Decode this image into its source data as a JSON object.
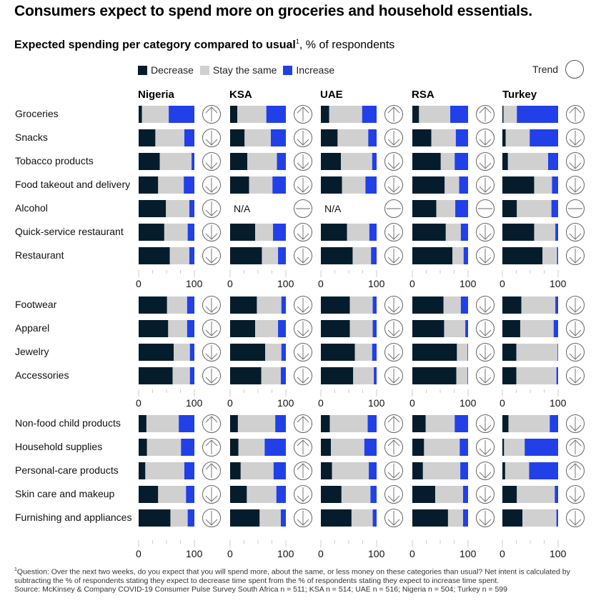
{
  "title": "Consumers expect to spend more on groceries and household essentials.",
  "subtitle_bold": "Expected spending per category compared to usual",
  "subtitle_sup": "1",
  "subtitle_rest": ", % of respondents",
  "legend": {
    "decrease": "Decrease",
    "same": "Stay the same",
    "increase": "Increase",
    "trend": "Trend"
  },
  "colors": {
    "decrease": "#051c2c",
    "same": "#d0d0d0",
    "increase": "#2140e8"
  },
  "na_label": "N/A",
  "footnote": {
    "sup": "1",
    "question": "Question: Over the next two weeks, do you expect that you will spend more, about the same, or less money on these categories than usual? Net intent is calculated by subtracting the % of respondents stating they expect to decrease time spent from the % of respondents stating they expect to increase time spent.",
    "source": "Source: McKinsey & Company COVID-19 Consumer Pulse Survey South Africa n = 511; KSA n = 514; UAE n = 516; Nigeria n = 504; Turkey n = 599"
  },
  "chart_data": {
    "type": "bar",
    "subtype": "stacked-horizontal-small-multiples",
    "title": "Expected spending per category compared to usual, % of respondents",
    "xlim": [
      0,
      100
    ],
    "xticks": [
      "0",
      "100"
    ],
    "series_names": [
      "Decrease",
      "Stay the same",
      "Increase"
    ],
    "countries": [
      "Nigeria",
      "KSA",
      "UAE",
      "RSA",
      "Turkey"
    ],
    "groups": [
      {
        "categories": [
          "Groceries",
          "Snacks",
          "Tobacco products",
          "Food takeout and delivery",
          "Alcohol",
          "Quick-service restaurant",
          "Restaurant"
        ],
        "values": {
          "Nigeria": [
            [
              6,
              48,
              46
            ],
            [
              30,
              52,
              18
            ],
            [
              38,
              57,
              5
            ],
            [
              35,
              46,
              19
            ],
            [
              49,
              42,
              9
            ],
            [
              46,
              42,
              12
            ],
            [
              56,
              35,
              9
            ]
          ],
          "KSA": [
            [
              13,
              52,
              35
            ],
            [
              26,
              47,
              27
            ],
            [
              31,
              53,
              16
            ],
            [
              34,
              42,
              24
            ],
            null,
            [
              45,
              32,
              23
            ],
            [
              57,
              29,
              14
            ]
          ],
          "UAE": [
            [
              15,
              59,
              26
            ],
            [
              30,
              55,
              15
            ],
            [
              36,
              56,
              8
            ],
            [
              38,
              42,
              20
            ],
            null,
            [
              47,
              40,
              13
            ],
            [
              57,
              33,
              10
            ]
          ],
          "RSA": [
            [
              12,
              56,
              32
            ],
            [
              34,
              44,
              22
            ],
            [
              51,
              25,
              24
            ],
            [
              58,
              26,
              16
            ],
            [
              43,
              34,
              23
            ],
            [
              60,
              27,
              13
            ],
            [
              72,
              20,
              8
            ]
          ],
          "Turkey": [
            [
              2,
              24,
              74
            ],
            [
              6,
              43,
              51
            ],
            [
              10,
              72,
              18
            ],
            [
              57,
              32,
              11
            ],
            [
              26,
              62,
              12
            ],
            [
              57,
              38,
              5
            ],
            [
              72,
              26,
              2
            ]
          ]
        },
        "trend": {
          "Nigeria": [
            "up",
            "down",
            "down",
            "down",
            "down",
            "down",
            "down"
          ],
          "KSA": [
            "up",
            "down",
            "down",
            "down",
            "neutral",
            "down",
            "down"
          ],
          "UAE": [
            "up",
            "down",
            "down",
            "down",
            "neutral",
            "down",
            "down"
          ],
          "RSA": [
            "up",
            "down",
            "down",
            "down",
            "neutral",
            "down",
            "down"
          ],
          "Turkey": [
            "up",
            "down",
            "down",
            "down",
            "neutral",
            "down",
            "down"
          ]
        }
      },
      {
        "categories": [
          "Footwear",
          "Apparel",
          "Jewelry",
          "Accessories"
        ],
        "values": {
          "Nigeria": [
            [
              51,
              36,
              13
            ],
            [
              53,
              34,
              13
            ],
            [
              63,
              29,
              8
            ],
            [
              61,
              31,
              8
            ]
          ],
          "KSA": [
            [
              48,
              44,
              8
            ],
            [
              45,
              41,
              14
            ],
            [
              63,
              29,
              8
            ],
            [
              56,
              35,
              9
            ]
          ],
          "UAE": [
            [
              52,
              41,
              7
            ],
            [
              52,
              41,
              7
            ],
            [
              61,
              31,
              8
            ],
            [
              58,
              37,
              5
            ]
          ],
          "RSA": [
            [
              56,
              31,
              13
            ],
            [
              57,
              38,
              5
            ],
            [
              80,
              19,
              1
            ],
            [
              79,
              20,
              1
            ]
          ],
          "Turkey": [
            [
              34,
              61,
              5
            ],
            [
              32,
              60,
              8
            ],
            [
              25,
              74,
              1
            ],
            [
              25,
              72,
              3
            ]
          ]
        },
        "trend": {
          "Nigeria": [
            "down",
            "down",
            "down",
            "down"
          ],
          "KSA": [
            "down",
            "down",
            "down",
            "down"
          ],
          "UAE": [
            "down",
            "down",
            "down",
            "down"
          ],
          "RSA": [
            "down",
            "down",
            "down",
            "down"
          ],
          "Turkey": [
            "down",
            "down",
            "down",
            "down"
          ]
        }
      },
      {
        "categories": [
          "Non-food child products",
          "Household supplies",
          "Personal-care products",
          "Skin care and makeup",
          "Furnishing and appliances"
        ],
        "values": {
          "Nigeria": [
            [
              14,
              58,
              28
            ],
            [
              15,
              61,
              24
            ],
            [
              12,
              70,
              18
            ],
            [
              35,
              50,
              15
            ],
            [
              57,
              31,
              12
            ]
          ],
          "KSA": [
            [
              14,
              67,
              19
            ],
            [
              15,
              47,
              38
            ],
            [
              19,
              59,
              22
            ],
            [
              30,
              53,
              17
            ],
            [
              53,
              38,
              9
            ]
          ],
          "UAE": [
            [
              16,
              68,
              16
            ],
            [
              18,
              60,
              22
            ],
            [
              20,
              66,
              14
            ],
            [
              37,
              52,
              11
            ],
            [
              55,
              38,
              7
            ]
          ],
          "RSA": [
            [
              24,
              52,
              24
            ],
            [
              21,
              64,
              15
            ],
            [
              19,
              67,
              14
            ],
            [
              41,
              50,
              9
            ],
            [
              64,
              27,
              9
            ]
          ],
          "Turkey": [
            [
              11,
              74,
              15
            ],
            [
              3,
              37,
              60
            ],
            [
              5,
              43,
              52
            ],
            [
              26,
              68,
              6
            ],
            [
              36,
              61,
              3
            ]
          ]
        },
        "trend": {
          "Nigeria": [
            "up",
            "up",
            "up",
            "down",
            "down"
          ],
          "KSA": [
            "up",
            "up",
            "up",
            "down",
            "down"
          ],
          "UAE": [
            "up",
            "up",
            "down",
            "down",
            "down"
          ],
          "RSA": [
            "down",
            "down",
            "down",
            "down",
            "down"
          ],
          "Turkey": [
            "down",
            "up",
            "up",
            "down",
            "down"
          ]
        }
      }
    ]
  }
}
